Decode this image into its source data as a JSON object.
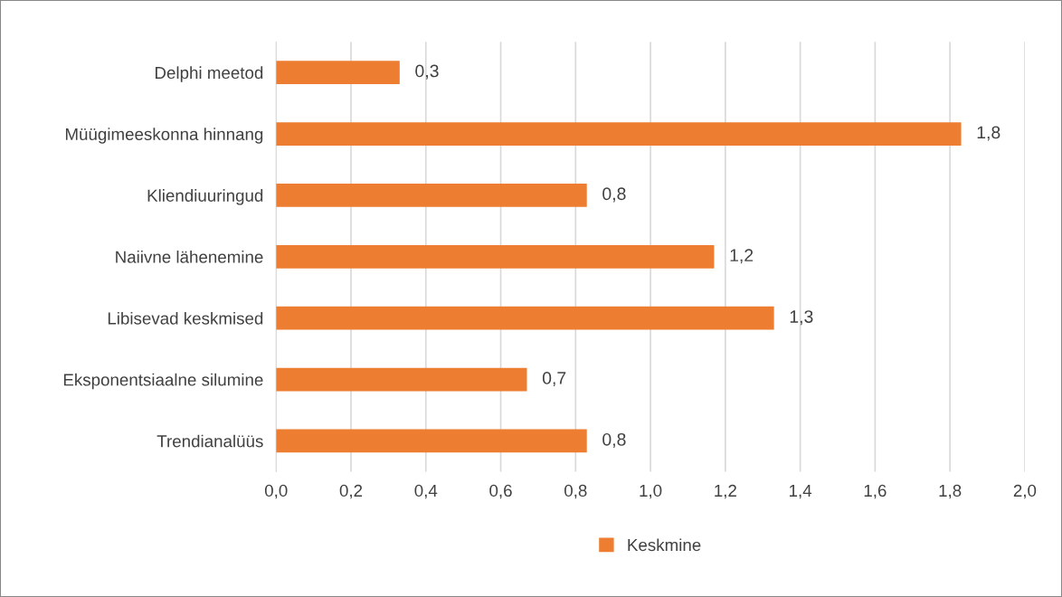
{
  "chart_data": {
    "type": "bar",
    "orientation": "horizontal",
    "categories": [
      "Delphi meetod",
      "Müügimeeskonna hinnang",
      "Kliendiuuringud",
      "Naiivne lähenemine",
      "Libisevad keskmised",
      "Eksponentsiaalne silumine",
      "Trendianalüüs"
    ],
    "series": [
      {
        "name": "Keskmine",
        "color": "#ed7d31",
        "values": [
          0.33,
          1.83,
          0.83,
          1.17,
          1.33,
          0.67,
          0.83
        ],
        "value_labels": [
          "0,3",
          "1,8",
          "0,8",
          "1,2",
          "1,3",
          "0,7",
          "0,8"
        ]
      }
    ],
    "xlim": [
      0,
      2.0
    ],
    "xticks": [
      {
        "value": 0,
        "label": "0,0"
      },
      {
        "value": 0.2,
        "label": "0,2"
      },
      {
        "value": 0.4,
        "label": "0,4"
      },
      {
        "value": 0.6,
        "label": "0,6"
      },
      {
        "value": 0.8,
        "label": "0,8"
      },
      {
        "value": 1.0,
        "label": "1,0"
      },
      {
        "value": 1.2,
        "label": "1,2"
      },
      {
        "value": 1.4,
        "label": "1,4"
      },
      {
        "value": 1.6,
        "label": "1,6"
      },
      {
        "value": 1.8,
        "label": "1,8"
      },
      {
        "value": 2.0,
        "label": "2,0"
      }
    ],
    "grid": "x",
    "legend": "bottom"
  }
}
